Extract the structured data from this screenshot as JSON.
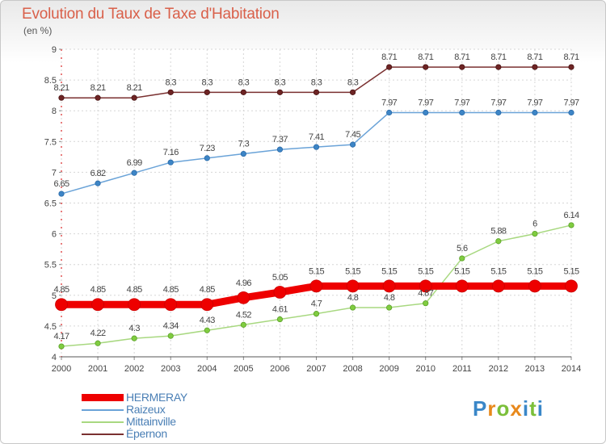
{
  "title": "Evolution du Taux de Taxe d'Habitation",
  "subtitle": "(en %)",
  "logo": {
    "text": "Proxiti",
    "letters": [
      "P",
      "r",
      "o",
      "x",
      "i",
      "t",
      "i"
    ],
    "colors": [
      "#3a87c8",
      "#e8891c",
      "#7bbf3a",
      "#e8891c",
      "#3a87c8",
      "#7bbf3a",
      "#3a87c8"
    ]
  },
  "chart_data": {
    "type": "line",
    "x": [
      "2000",
      "2001",
      "2002",
      "2003",
      "2004",
      "2005",
      "2006",
      "2007",
      "2008",
      "2009",
      "2010",
      "2011",
      "2012",
      "2013",
      "2014"
    ],
    "ylim": [
      4,
      9
    ],
    "yticks": [
      "4",
      "4.5",
      "5",
      "5.5",
      "6",
      "6.5",
      "7",
      "7.5",
      "8",
      "8.5",
      "9"
    ],
    "grid": true,
    "legend_position": "bottom-left",
    "series": [
      {
        "name": "HERMERAY",
        "color": "#ee0000",
        "values": [
          4.85,
          4.85,
          4.85,
          4.85,
          4.85,
          4.96,
          5.05,
          5.15,
          5.15,
          5.15,
          5.15,
          5.15,
          5.15,
          5.15,
          5.15
        ],
        "labels": [
          "4.85",
          "4.85",
          "4.85",
          "4.85",
          "4.85",
          "4.96",
          "5.05",
          "5.15",
          "5.15",
          "5.15",
          "5.15",
          "5.15",
          "5.15",
          "5.15",
          "5.15"
        ]
      },
      {
        "name": "Raizeux",
        "color": "#5b9bd5",
        "values": [
          6.65,
          6.82,
          6.99,
          7.16,
          7.23,
          7.3,
          7.37,
          7.41,
          7.45,
          7.97,
          7.97,
          7.97,
          7.97,
          7.97,
          7.97
        ],
        "labels": [
          "6.65",
          "6.82",
          "6.99",
          "7.16",
          "7.23",
          "7.3",
          "7.37",
          "7.41",
          "7.45",
          "7.97",
          "7.97",
          "7.97",
          "7.97",
          "7.97",
          "7.97"
        ]
      },
      {
        "name": "Mittainville",
        "color": "#9bd46a",
        "values": [
          4.17,
          4.22,
          4.3,
          4.34,
          4.43,
          4.52,
          4.61,
          4.7,
          4.8,
          4.8,
          4.87,
          5.6,
          5.88,
          6.0,
          6.14
        ],
        "labels": [
          "4.17",
          "4.22",
          "4.3",
          "4.34",
          "4.43",
          "4.52",
          "4.61",
          "4.7",
          "4.8",
          "4.8",
          "4.87",
          "5.6",
          "5.88",
          "6",
          "6.14"
        ]
      },
      {
        "name": "Épernon",
        "color": "#7a3030",
        "values": [
          8.21,
          8.21,
          8.21,
          8.3,
          8.3,
          8.3,
          8.3,
          8.3,
          8.3,
          8.71,
          8.71,
          8.71,
          8.71,
          8.71,
          8.71
        ],
        "labels": [
          "8.21",
          "8.21",
          "8.21",
          "8.3",
          "8.3",
          "8.3",
          "8.3",
          "8.3",
          "8.3",
          "8.71",
          "8.71",
          "8.71",
          "8.71",
          "8.71",
          "8.71"
        ]
      }
    ]
  }
}
